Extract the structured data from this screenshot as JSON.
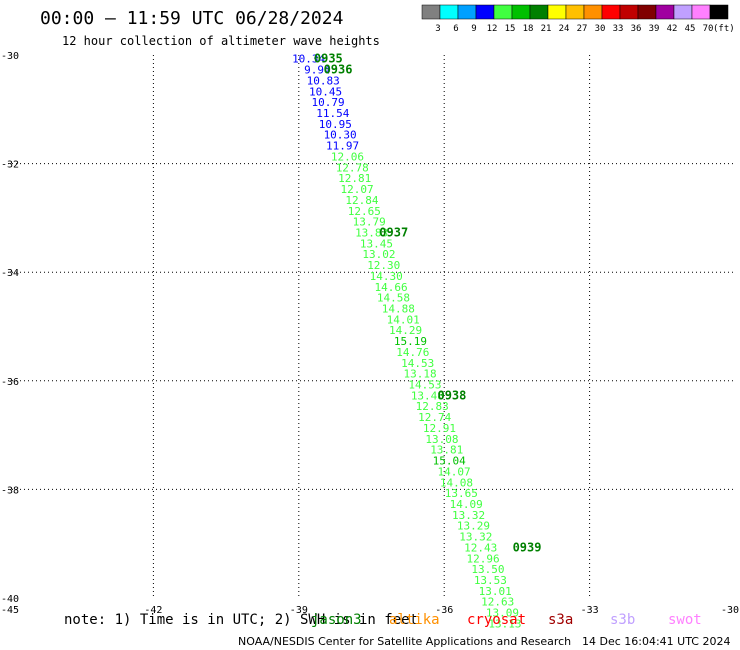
{
  "header": {
    "title": "00:00 – 11:59 UTC 06/28/2024",
    "subtitle": "12 hour collection of altimeter wave heights"
  },
  "legend": {
    "unit": "(ft)",
    "bins": [
      {
        "label": "3",
        "color": "#808080"
      },
      {
        "label": "6",
        "color": "#00ffff"
      },
      {
        "label": "9",
        "color": "#00a0ff"
      },
      {
        "label": "12",
        "color": "#0000ff"
      },
      {
        "label": "15",
        "color": "#40ff40"
      },
      {
        "label": "18",
        "color": "#00c000"
      },
      {
        "label": "21",
        "color": "#008000"
      },
      {
        "label": "24",
        "color": "#ffff00"
      },
      {
        "label": "27",
        "color": "#ffc000"
      },
      {
        "label": "30",
        "color": "#ff9000"
      },
      {
        "label": "33",
        "color": "#ff0000"
      },
      {
        "label": "36",
        "color": "#c00000"
      },
      {
        "label": "39",
        "color": "#800000"
      },
      {
        "label": "42",
        "color": "#a000a0"
      },
      {
        "label": "45",
        "color": "#c0a0ff"
      },
      {
        "label": "70",
        "color": "#ff80ff"
      },
      {
        "label": "",
        "color": "#000000"
      }
    ]
  },
  "footer": {
    "note": "note: 1) Time is in UTC; 2) SWH is in feet",
    "credit": "NOAA/NESDIS Center for Satellite Applications and Research",
    "timestamp": "14 Dec 16:04:41 UTC 2024",
    "satellites": [
      {
        "name": "jason3",
        "color": "#008000"
      },
      {
        "name": "altika",
        "color": "#ff9000"
      },
      {
        "name": "cryosat",
        "color": "#ff0000"
      },
      {
        "name": "s3a",
        "color": "#a00000"
      },
      {
        "name": "s3b",
        "color": "#c0a0ff"
      },
      {
        "name": "swot",
        "color": "#ff80ff"
      }
    ]
  },
  "chart_data": {
    "type": "scatter",
    "title": "00:00 – 11:59 UTC 06/28/2024",
    "subtitle": "12 hour collection of altimeter wave heights",
    "xlim": [
      -45,
      -30
    ],
    "ylim": [
      -40,
      -30
    ],
    "xticks": [
      "-45",
      "-42",
      "-39",
      "-36",
      "-33",
      "-30"
    ],
    "yticks": [
      "-30",
      "-32",
      "-34",
      "-36",
      "-38",
      "-40"
    ],
    "grid": true,
    "legend_placement": "top-right colorbar",
    "points": [
      {
        "lon": -38.85,
        "lat": -30.05,
        "swh": "10.34",
        "color": "#0000ff"
      },
      {
        "lon": -38.6,
        "lat": -30.25,
        "swh": "9.94",
        "color": "#0000ff"
      },
      {
        "lon": -38.55,
        "lat": -30.45,
        "swh": "10.83",
        "color": "#0000ff"
      },
      {
        "lon": -38.5,
        "lat": -30.65,
        "swh": "10.45",
        "color": "#0000ff"
      },
      {
        "lon": -38.45,
        "lat": -30.85,
        "swh": "10.79",
        "color": "#0000ff"
      },
      {
        "lon": -38.35,
        "lat": -31.05,
        "swh": "11.54",
        "color": "#0000ff"
      },
      {
        "lon": -38.3,
        "lat": -31.25,
        "swh": "10.95",
        "color": "#0000ff"
      },
      {
        "lon": -38.2,
        "lat": -31.45,
        "swh": "10.30",
        "color": "#0000ff"
      },
      {
        "lon": -38.15,
        "lat": -31.65,
        "swh": "11.97",
        "color": "#0000ff"
      },
      {
        "lon": -38.05,
        "lat": -31.85,
        "swh": "12.06",
        "color": "#40ff40"
      },
      {
        "lon": -37.95,
        "lat": -32.05,
        "swh": "12.78",
        "color": "#40ff40"
      },
      {
        "lon": -37.9,
        "lat": -32.25,
        "swh": "12.81",
        "color": "#40ff40"
      },
      {
        "lon": -37.85,
        "lat": -32.45,
        "swh": "12.07",
        "color": "#40ff40"
      },
      {
        "lon": -37.75,
        "lat": -32.65,
        "swh": "12.84",
        "color": "#40ff40"
      },
      {
        "lon": -37.7,
        "lat": -32.85,
        "swh": "12.65",
        "color": "#40ff40"
      },
      {
        "lon": -37.6,
        "lat": -33.05,
        "swh": "13.79",
        "color": "#40ff40"
      },
      {
        "lon": -37.55,
        "lat": -33.25,
        "swh": "13.83",
        "color": "#40ff40"
      },
      {
        "lon": -37.45,
        "lat": -33.45,
        "swh": "13.45",
        "color": "#40ff40"
      },
      {
        "lon": -37.4,
        "lat": -33.65,
        "swh": "13.02",
        "color": "#40ff40"
      },
      {
        "lon": -37.3,
        "lat": -33.85,
        "swh": "12.30",
        "color": "#40ff40"
      },
      {
        "lon": -37.25,
        "lat": -34.05,
        "swh": "14.30",
        "color": "#40ff40"
      },
      {
        "lon": -37.15,
        "lat": -34.25,
        "swh": "14.66",
        "color": "#40ff40"
      },
      {
        "lon": -37.1,
        "lat": -34.45,
        "swh": "14.58",
        "color": "#40ff40"
      },
      {
        "lon": -37.0,
        "lat": -34.65,
        "swh": "14.88",
        "color": "#40ff40"
      },
      {
        "lon": -36.9,
        "lat": -34.85,
        "swh": "14.01",
        "color": "#40ff40"
      },
      {
        "lon": -36.85,
        "lat": -35.05,
        "swh": "14.29",
        "color": "#40ff40"
      },
      {
        "lon": -36.75,
        "lat": -35.25,
        "swh": "15.19",
        "color": "#00c000"
      },
      {
        "lon": -36.7,
        "lat": -35.45,
        "swh": "14.76",
        "color": "#40ff40"
      },
      {
        "lon": -36.6,
        "lat": -35.65,
        "swh": "14.53",
        "color": "#40ff40"
      },
      {
        "lon": -36.55,
        "lat": -35.85,
        "swh": "13.18",
        "color": "#40ff40"
      },
      {
        "lon": -36.45,
        "lat": -36.05,
        "swh": "14.53",
        "color": "#40ff40"
      },
      {
        "lon": -36.4,
        "lat": -36.25,
        "swh": "13.48",
        "color": "#40ff40"
      },
      {
        "lon": -36.3,
        "lat": -36.45,
        "swh": "12.83",
        "color": "#40ff40"
      },
      {
        "lon": -36.25,
        "lat": -36.65,
        "swh": "12.74",
        "color": "#40ff40"
      },
      {
        "lon": -36.15,
        "lat": -36.85,
        "swh": "12.91",
        "color": "#40ff40"
      },
      {
        "lon": -36.1,
        "lat": -37.05,
        "swh": "13.08",
        "color": "#40ff40"
      },
      {
        "lon": -36.0,
        "lat": -37.25,
        "swh": "13.81",
        "color": "#40ff40"
      },
      {
        "lon": -35.95,
        "lat": -37.45,
        "swh": "15.04",
        "color": "#00c000"
      },
      {
        "lon": -35.85,
        "lat": -37.65,
        "swh": "14.07",
        "color": "#40ff40"
      },
      {
        "lon": -35.8,
        "lat": -37.85,
        "swh": "14.08",
        "color": "#40ff40"
      },
      {
        "lon": -35.7,
        "lat": -38.05,
        "swh": "13.65",
        "color": "#40ff40"
      },
      {
        "lon": -35.6,
        "lat": -38.25,
        "swh": "14.09",
        "color": "#40ff40"
      },
      {
        "lon": -35.55,
        "lat": -38.45,
        "swh": "13.32",
        "color": "#40ff40"
      },
      {
        "lon": -35.45,
        "lat": -38.65,
        "swh": "13.29",
        "color": "#40ff40"
      },
      {
        "lon": -35.4,
        "lat": -38.85,
        "swh": "13.32",
        "color": "#40ff40"
      },
      {
        "lon": -35.3,
        "lat": -39.05,
        "swh": "12.43",
        "color": "#40ff40"
      },
      {
        "lon": -35.25,
        "lat": -39.25,
        "swh": "12.96",
        "color": "#40ff40"
      },
      {
        "lon": -35.15,
        "lat": -39.45,
        "swh": "13.50",
        "color": "#40ff40"
      },
      {
        "lon": -35.1,
        "lat": -39.65,
        "swh": "13.53",
        "color": "#40ff40"
      },
      {
        "lon": -35.0,
        "lat": -39.85,
        "swh": "13.01",
        "color": "#40ff40"
      },
      {
        "lon": -34.95,
        "lat": -40.05,
        "swh": "12.63",
        "color": "#40ff40"
      },
      {
        "lon": -34.85,
        "lat": -40.25,
        "swh": "13.09",
        "color": "#40ff40"
      },
      {
        "lon": -34.8,
        "lat": -40.45,
        "swh": "13.13",
        "color": "#40ff40"
      }
    ],
    "time_labels": [
      {
        "lon": -38.4,
        "lat": -30.05,
        "label": "0935",
        "color": "#008000"
      },
      {
        "lon": -38.2,
        "lat": -30.25,
        "label": "0936",
        "color": "#008000"
      },
      {
        "lon": -37.05,
        "lat": -33.25,
        "label": "0937",
        "color": "#008000"
      },
      {
        "lon": -35.85,
        "lat": -36.25,
        "label": "0938",
        "color": "#008000"
      },
      {
        "lon": -34.3,
        "lat": -39.05,
        "label": "0939",
        "color": "#008000"
      }
    ]
  }
}
